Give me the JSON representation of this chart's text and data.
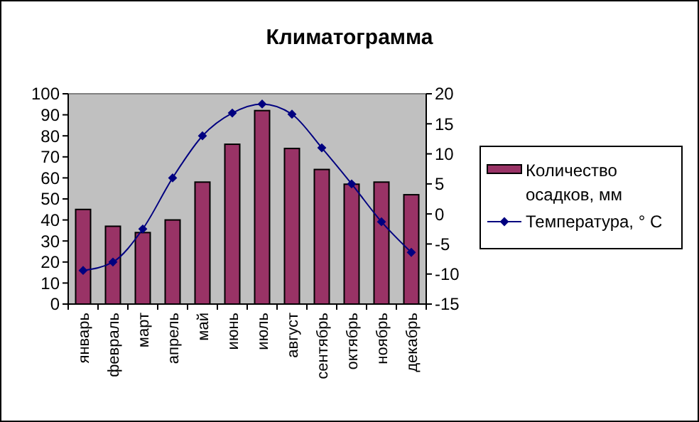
{
  "chart_data": {
    "type": "bar",
    "title": "Климатограмма",
    "categories": [
      "январь",
      "февраль",
      "март",
      "апрель",
      "май",
      "июнь",
      "июль",
      "август",
      "сентябрь",
      "октябрь",
      "ноябрь",
      "декабрь"
    ],
    "series": [
      {
        "name": "Количество осадков, мм",
        "color": "#993366",
        "values": [
          45,
          37,
          34,
          40,
          58,
          76,
          92,
          74,
          64,
          57,
          58,
          52
        ]
      },
      {
        "name": "Температура, ° C",
        "type": "line",
        "axis": "y2",
        "color": "#000080",
        "values": [
          -9.4,
          -8,
          -2.5,
          6,
          13,
          16.8,
          18.3,
          16.6,
          11,
          5,
          -1.3,
          -6.4
        ]
      }
    ],
    "ylim": [
      0,
      100
    ],
    "yticks": [
      0,
      10,
      20,
      30,
      40,
      50,
      60,
      70,
      80,
      90,
      100
    ],
    "y2lim": [
      -15,
      20
    ],
    "y2ticks": [
      -15,
      -10,
      -5,
      0,
      5,
      10,
      15,
      20
    ],
    "grid": false,
    "legend": "right",
    "marker": "diamond",
    "line_style": "solid"
  }
}
